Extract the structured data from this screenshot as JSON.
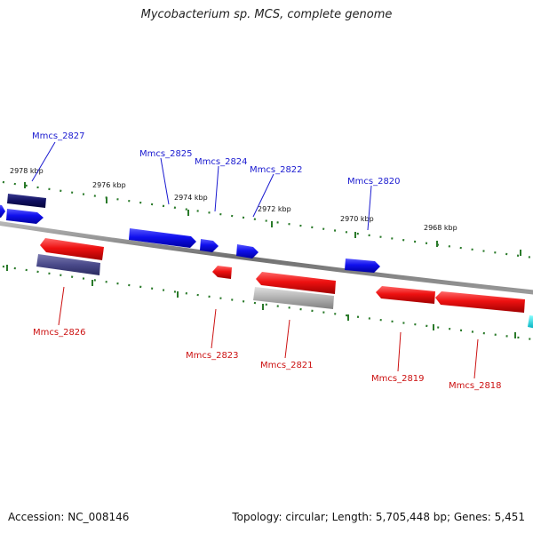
{
  "title": "Mycobacterium sp. MCS, complete genome",
  "footer": {
    "accession": "Accession: NC_008146",
    "topology": "Topology: circular; Length: 5,705,448 bp; Genes: 5,451"
  },
  "ticks": [
    {
      "id": "t2978",
      "label": "2978 kbp"
    },
    {
      "id": "t2976",
      "label": "2976 kbp"
    },
    {
      "id": "t2974",
      "label": "2974 kbp"
    },
    {
      "id": "t2972",
      "label": "2972 kbp"
    },
    {
      "id": "t2970",
      "label": "2970 kbp"
    },
    {
      "id": "t2968",
      "label": "2968 kbp"
    }
  ],
  "genes": [
    {
      "id": "g2827",
      "name": "Mmcs_2827",
      "strand": "+"
    },
    {
      "id": "g2826",
      "name": "Mmcs_2826",
      "strand": "-"
    },
    {
      "id": "g2825",
      "name": "Mmcs_2825",
      "strand": "+"
    },
    {
      "id": "g2824",
      "name": "Mmcs_2824",
      "strand": "+"
    },
    {
      "id": "g2823",
      "name": "Mmcs_2823",
      "strand": "-"
    },
    {
      "id": "g2822",
      "name": "Mmcs_2822",
      "strand": "+"
    },
    {
      "id": "g2821",
      "name": "Mmcs_2821",
      "strand": "-"
    },
    {
      "id": "g2820",
      "name": "Mmcs_2820",
      "strand": "+"
    },
    {
      "id": "g2819",
      "name": "Mmcs_2819",
      "strand": "-"
    },
    {
      "id": "g2818",
      "name": "Mmcs_2818",
      "strand": "-"
    }
  ],
  "colors": {
    "forward": "#1010ee",
    "reverse": "#ee1111",
    "navy": "#101060",
    "slate": "#4a4a8a",
    "grey": "#b0b0b0",
    "cyan": "#00dddd",
    "backbone": "#808080",
    "tick_dot": "#2a7a2a"
  }
}
